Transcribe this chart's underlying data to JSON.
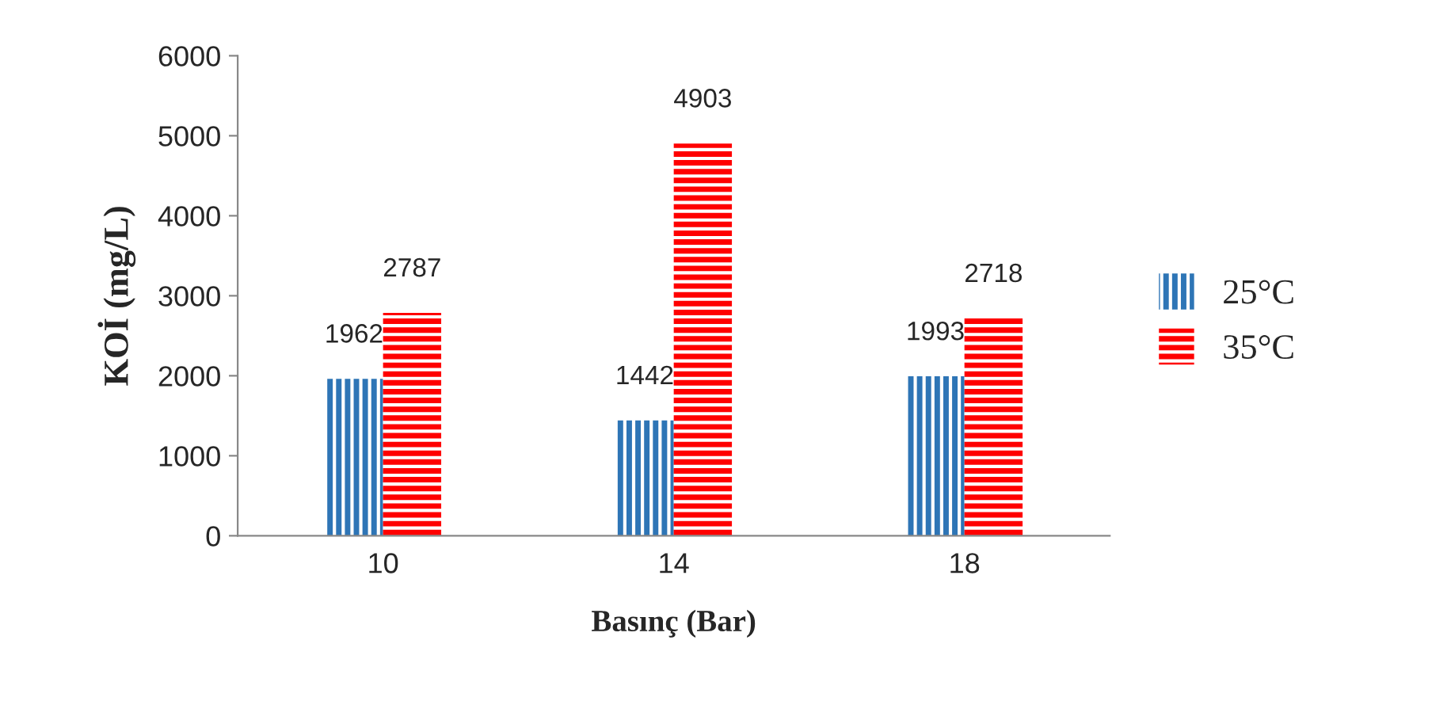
{
  "chart_data": {
    "type": "bar",
    "xlabel": "Basınç (Bar)",
    "ylabel": "KOİ (mg/L)",
    "categories": [
      "10",
      "14",
      "18"
    ],
    "series": [
      {
        "name": "25°C",
        "color": "#2e75b6",
        "values": [
          1962,
          1442,
          1993
        ]
      },
      {
        "name": "35°C",
        "color": "#ff0000",
        "values": [
          2787,
          4903,
          2718
        ]
      }
    ],
    "ylim": [
      0,
      6000
    ],
    "yticks": [
      0,
      1000,
      2000,
      3000,
      4000,
      5000,
      6000
    ],
    "data_labels": true,
    "grid": false,
    "legend": "right"
  }
}
